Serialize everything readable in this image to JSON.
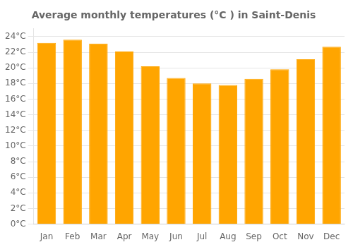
{
  "chart_data": {
    "type": "bar",
    "title": "Average monthly temperatures (°C ) in Saint-Denis",
    "categories": [
      "Jan",
      "Feb",
      "Mar",
      "Apr",
      "May",
      "Jun",
      "Jul",
      "Aug",
      "Sep",
      "Oct",
      "Nov",
      "Dec"
    ],
    "values": [
      23.2,
      23.6,
      23.1,
      22.1,
      20.2,
      18.7,
      18.0,
      17.8,
      18.6,
      19.8,
      21.1,
      22.7
    ],
    "color": "#FFA500",
    "ylim": [
      0,
      25
    ],
    "yticks": [
      {
        "value": 0,
        "label": "0°C"
      },
      {
        "value": 2,
        "label": "2°C"
      },
      {
        "value": 4,
        "label": "4°C"
      },
      {
        "value": 6,
        "label": "6°C"
      },
      {
        "value": 8,
        "label": "8°C"
      },
      {
        "value": 10,
        "label": "10°C"
      },
      {
        "value": 12,
        "label": "12°C"
      },
      {
        "value": 14,
        "label": "14°C"
      },
      {
        "value": 16,
        "label": "16°C"
      },
      {
        "value": 18,
        "label": "18°C"
      },
      {
        "value": 20,
        "label": "20°C"
      },
      {
        "value": 22,
        "label": "22°C"
      },
      {
        "value": 24,
        "label": "24°C"
      }
    ],
    "grid": true
  }
}
